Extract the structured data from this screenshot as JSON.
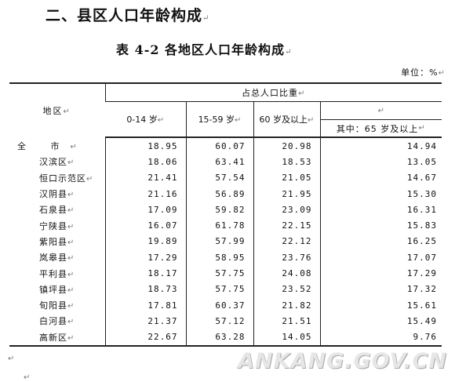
{
  "section_heading": "二、县区人口年龄构成",
  "table_title": "表 4-2 各地区人口年龄构成",
  "unit_note": "单位：%",
  "paragraph_mark": "↵",
  "header": {
    "region": "地区",
    "group": "占总人口比重",
    "col_0_14": "0-14 岁",
    "col_15_59": "15-59 岁",
    "col_60": "60 岁及以上",
    "col_65": "其中：65 岁及以上"
  },
  "rows": [
    {
      "name": "全 市",
      "v0_14": "18.95",
      "v15_59": "60.07",
      "v60": "20.98",
      "v65": "14.94"
    },
    {
      "name": "汉滨区",
      "v0_14": "18.06",
      "v15_59": "63.41",
      "v60": "18.53",
      "v65": "13.05"
    },
    {
      "name": "恒口示范区",
      "v0_14": "21.41",
      "v15_59": "57.54",
      "v60": "21.05",
      "v65": "14.67"
    },
    {
      "name": "汉阴县",
      "v0_14": "21.16",
      "v15_59": "56.89",
      "v60": "21.95",
      "v65": "15.30"
    },
    {
      "name": "石泉县",
      "v0_14": "17.09",
      "v15_59": "59.82",
      "v60": "23.09",
      "v65": "16.31"
    },
    {
      "name": "宁陕县",
      "v0_14": "16.07",
      "v15_59": "61.78",
      "v60": "22.15",
      "v65": "15.83"
    },
    {
      "name": "紫阳县",
      "v0_14": "19.89",
      "v15_59": "57.99",
      "v60": "22.12",
      "v65": "16.25"
    },
    {
      "name": "岚皋县",
      "v0_14": "17.29",
      "v15_59": "58.95",
      "v60": "23.76",
      "v65": "17.07"
    },
    {
      "name": "平利县",
      "v0_14": "18.17",
      "v15_59": "57.75",
      "v60": "24.08",
      "v65": "17.29"
    },
    {
      "name": "镇坪县",
      "v0_14": "18.73",
      "v15_59": "57.75",
      "v60": "23.52",
      "v65": "17.32"
    },
    {
      "name": "旬阳县",
      "v0_14": "17.81",
      "v15_59": "60.37",
      "v60": "21.82",
      "v65": "15.61"
    },
    {
      "name": "白河县",
      "v0_14": "21.37",
      "v15_59": "57.12",
      "v60": "21.51",
      "v65": "15.49"
    },
    {
      "name": "高新区",
      "v0_14": "22.67",
      "v15_59": "63.28",
      "v60": "14.05",
      "v65": "9.76"
    }
  ],
  "watermark": "ANKANG.GOV.CN"
}
